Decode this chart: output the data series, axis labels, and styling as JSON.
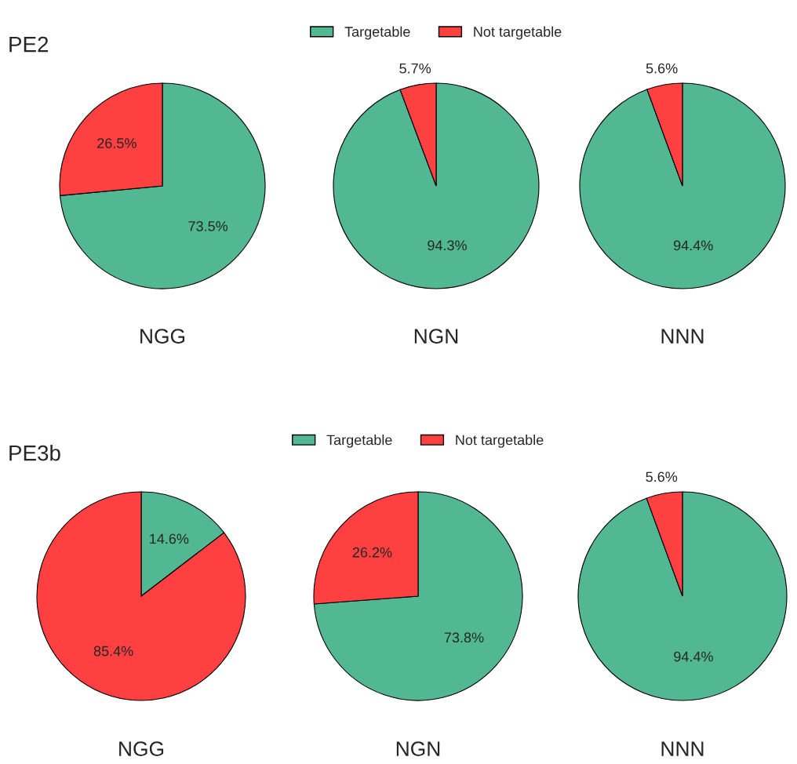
{
  "chart_data": [
    {
      "type": "pie",
      "title": "PE2",
      "xlabel": "NGG",
      "categories": [
        null,
        null
      ],
      "values": [
        73.5,
        26.5
      ],
      "colors": [
        "#52b793",
        "#ff4040"
      ],
      "value_labels": [
        "73.5%",
        "26.5%"
      ]
    },
    {
      "type": "pie",
      "xlabel": "NGN",
      "categories": [
        "Targetable",
        "Not targetable"
      ],
      "values": [
        94.3,
        5.7
      ],
      "colors": [
        "#52b793",
        "#ff4040"
      ],
      "value_labels": [
        "94.3%",
        "5.7%"
      ],
      "legend": "top"
    },
    {
      "type": "pie",
      "xlabel": "NNN",
      "categories": [
        null,
        null
      ],
      "values": [
        94.4,
        5.6
      ],
      "colors": [
        "#52b793",
        "#ff4040"
      ],
      "value_labels": [
        "94.4%",
        "5.6%"
      ]
    },
    {
      "type": "pie",
      "title": "PE3b",
      "xlabel": "NGG",
      "categories": [
        null,
        null
      ],
      "values": [
        14.6,
        85.4
      ],
      "colors": [
        "#52b793",
        "#ff4040"
      ],
      "value_labels": [
        "14.6%",
        "85.4%"
      ]
    },
    {
      "type": "pie",
      "xlabel": "NGN",
      "categories": [
        "Targetable",
        "Not targetable"
      ],
      "values": [
        73.8,
        26.2
      ],
      "colors": [
        "#52b793",
        "#ff4040"
      ],
      "value_labels": [
        "73.8%",
        "26.2%"
      ],
      "legend": "top"
    },
    {
      "type": "pie",
      "xlabel": "NNN",
      "categories": [
        null,
        null
      ],
      "values": [
        94.4,
        5.6
      ],
      "colors": [
        "#52b793",
        "#ff4040"
      ],
      "value_labels": [
        "94.4%",
        "5.6%"
      ]
    }
  ]
}
